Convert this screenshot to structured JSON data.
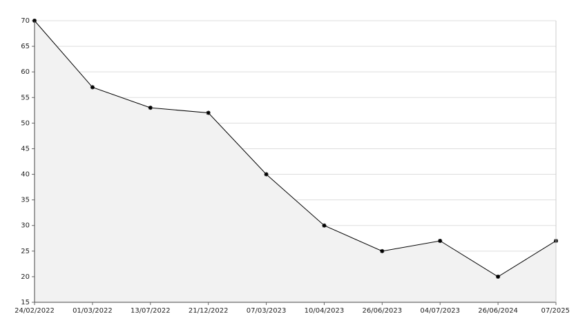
{
  "chart_data": {
    "type": "area",
    "categories": [
      "24/02/2022",
      "01/03/2022",
      "13/07/2022",
      "21/12/2022",
      "07/03/2023",
      "10/04/2023",
      "26/06/2023",
      "04/07/2023",
      "26/06/2024",
      "07/2025"
    ],
    "values": [
      70,
      57,
      53,
      52,
      40,
      30,
      25,
      27,
      20,
      27
    ],
    "color": "#000000",
    "fill_color": "#f2f2f2",
    "ylim": [
      15,
      70
    ],
    "yticks": [
      15,
      20,
      25,
      30,
      35,
      40,
      45,
      50,
      55,
      60,
      65,
      70
    ],
    "grid": true
  }
}
